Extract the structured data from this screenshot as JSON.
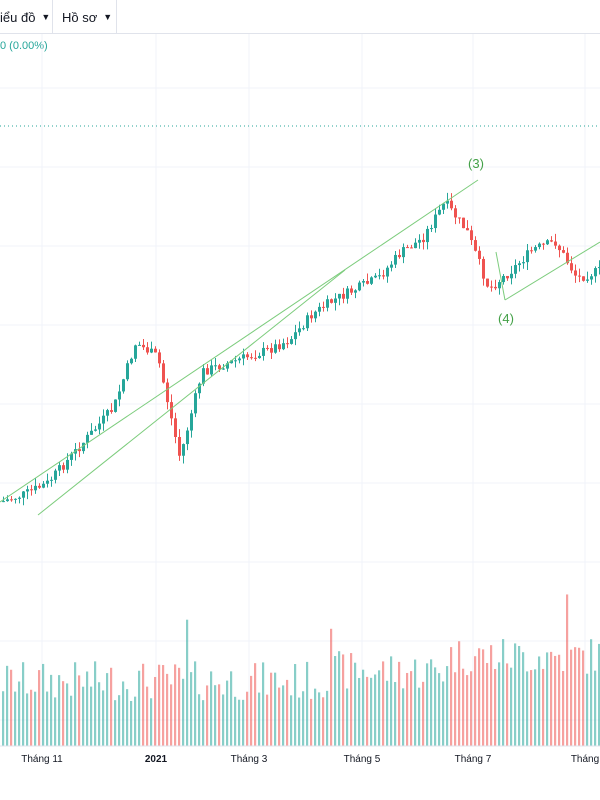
{
  "toolbar": {
    "items": [
      {
        "label": "iểu đồ",
        "name": "chart-menu"
      },
      {
        "label": "Hồ sơ",
        "name": "profile-menu"
      }
    ]
  },
  "header": {
    "change_text": "0 (0.00%)"
  },
  "colors": {
    "up": "#26a69a",
    "down": "#ef5350",
    "trendline": "#7ccc7c",
    "wave_label": "#43a047",
    "grid": "#f0f3fa",
    "axis_text": "#131722"
  },
  "chart_data": {
    "type": "candlestick",
    "title": "",
    "xlabel": "",
    "ylabel": "",
    "x_tick_labels": [
      "Tháng 11",
      "2021",
      "Tháng 3",
      "Tháng 5",
      "Tháng 7",
      "Tháng"
    ],
    "annotations": [
      "(3)",
      "(4)"
    ],
    "price_trend": [
      0.08,
      0.1,
      0.13,
      0.2,
      0.27,
      0.34,
      0.52,
      0.48,
      0.2,
      0.44,
      0.46,
      0.48,
      0.5,
      0.53,
      0.6,
      0.64,
      0.67,
      0.7,
      0.77,
      0.81,
      0.91,
      0.83,
      0.67,
      0.72,
      0.78,
      0.8,
      0.7,
      0.72
    ]
  }
}
